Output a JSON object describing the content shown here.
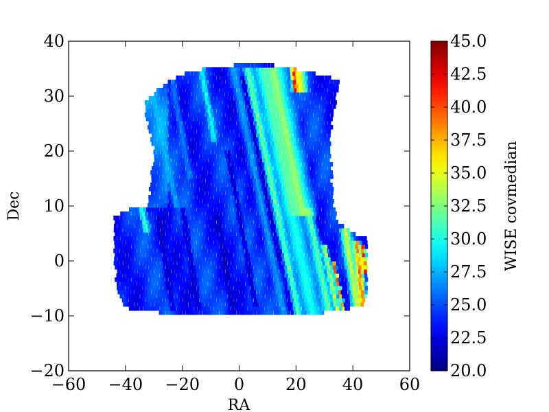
{
  "chart_data": {
    "type": "heatmap",
    "title": "",
    "xlabel": "RA",
    "ylabel": "Dec",
    "xlim": [
      -60,
      60
    ],
    "ylim": [
      -20,
      40
    ],
    "xticks": [
      -60,
      -40,
      -20,
      0,
      20,
      40,
      60
    ],
    "xtick_labels": [
      "−60",
      "−40",
      "−20",
      "0",
      "20",
      "40",
      "60"
    ],
    "yticks": [
      -20,
      -10,
      0,
      10,
      20,
      30,
      40
    ],
    "ytick_labels": [
      "−20",
      "−10",
      "0",
      "10",
      "20",
      "30",
      "40"
    ],
    "colorbar": {
      "label": "WISE covmedian",
      "colormap": "jet",
      "range": [
        20.0,
        45.0
      ],
      "ticks": [
        20.0,
        22.5,
        25.0,
        27.5,
        30.0,
        32.5,
        35.0,
        37.5,
        40.0,
        42.5,
        45.0
      ],
      "tick_labels": [
        "20.0",
        "22.5",
        "25.0",
        "27.5",
        "30.0",
        "32.5",
        "35.0",
        "37.5",
        "40.0",
        "42.5",
        "45.0"
      ]
    },
    "footprint": {
      "description_points": [
        [
          -33,
          29
        ],
        [
          -27,
          32
        ],
        [
          -18,
          34.5
        ],
        [
          -5,
          35.5
        ],
        [
          5,
          36
        ],
        [
          15,
          35.5
        ],
        [
          28,
          34
        ],
        [
          35,
          33
        ],
        [
          32,
          23
        ],
        [
          33,
          10
        ],
        [
          35,
          7
        ],
        [
          40,
          5
        ],
        [
          45,
          4
        ],
        [
          45,
          -4
        ],
        [
          44,
          -8
        ],
        [
          35,
          -9
        ],
        [
          20,
          -10
        ],
        [
          0,
          -10
        ],
        [
          -20,
          -10
        ],
        [
          -40,
          -8.5
        ],
        [
          -43,
          -5
        ],
        [
          -44,
          0
        ],
        [
          -44,
          8
        ],
        [
          -38,
          9.5
        ],
        [
          -32,
          10
        ],
        [
          -30,
          20
        ],
        [
          -33,
          26
        ]
      ],
      "background_value": 24.0,
      "stripes": [
        {
          "x_at_dec0": -30,
          "slope": -0.45,
          "value": 33,
          "width": 1.6,
          "dec_min": 5,
          "dec_max": 30
        },
        {
          "x_at_dec0": -27,
          "slope": -0.5,
          "value": 37,
          "width": 0.9,
          "dec_min": 15,
          "dec_max": 31
        },
        {
          "x_at_dec0": -30,
          "slope": -0.55,
          "value": 43,
          "width": 0.8,
          "dec_min": 24,
          "dec_max": 30
        },
        {
          "x_at_dec0": -18,
          "slope": -0.4,
          "value": 28,
          "width": 1.6,
          "dec_min": 10,
          "dec_max": 34
        },
        {
          "x_at_dec0": -26,
          "slope": -0.3,
          "value": 21,
          "width": 1.4,
          "dec_min": -9,
          "dec_max": 8
        },
        {
          "x_at_dec0": -17,
          "slope": -0.3,
          "value": 21,
          "width": 1.5,
          "dec_min": -9,
          "dec_max": 10
        },
        {
          "x_at_dec0": -5,
          "slope": -0.3,
          "value": 21,
          "width": 1.4,
          "dec_min": -9,
          "dec_max": 8
        },
        {
          "x_at_dec0": -12,
          "slope": -0.35,
          "value": 27,
          "width": 1.8,
          "dec_min": 15,
          "dec_max": 35
        },
        {
          "x_at_dec0": -1,
          "slope": -0.35,
          "value": 31,
          "width": 1.5,
          "dec_min": 22,
          "dec_max": 35
        },
        {
          "x_at_dec0": 3,
          "slope": -0.35,
          "value": 20.5,
          "width": 1.3,
          "dec_min": -8,
          "dec_max": 20
        },
        {
          "x_at_dec0": 14,
          "slope": -0.38,
          "value": 20.5,
          "width": 1.4,
          "dec_min": 0,
          "dec_max": 34
        },
        {
          "x_at_dec0": 12,
          "slope": -0.4,
          "value": 28,
          "width": 2.5,
          "dec_min": -10,
          "dec_max": 35
        },
        {
          "x_at_dec0": 17,
          "slope": -0.4,
          "value": 34,
          "width": 2.0,
          "dec_min": -10,
          "dec_max": 35
        },
        {
          "x_at_dec0": 22,
          "slope": -0.4,
          "value": 31,
          "width": 5.0,
          "dec_min": -10,
          "dec_max": 35
        },
        {
          "x_at_dec0": 26,
          "slope": -0.4,
          "value": 35,
          "width": 6.0,
          "dec_min": 8,
          "dec_max": 35
        },
        {
          "x_at_dec0": 28,
          "slope": -0.4,
          "value": 34,
          "width": 2.5,
          "dec_min": -10,
          "dec_max": 10
        },
        {
          "x_at_dec0": 31,
          "slope": -0.4,
          "value": 38,
          "width": 1.5,
          "dec_min": -10,
          "dec_max": 3
        },
        {
          "x_at_dec0": 33,
          "slope": -0.4,
          "value": 44,
          "width": 1.0,
          "dec_min": -10,
          "dec_max": 0
        },
        {
          "x_at_dec0": 39,
          "slope": -0.3,
          "value": 37,
          "width": 2.5,
          "dec_min": -8,
          "dec_max": 6
        },
        {
          "x_at_dec0": 42,
          "slope": -0.2,
          "value": 43,
          "width": 1.8,
          "dec_min": -8,
          "dec_max": 4
        },
        {
          "x_at_dec0": 44,
          "slope": -0.2,
          "value": 45,
          "width": 1.2,
          "dec_min": -2,
          "dec_max": 3
        },
        {
          "x_at_dec0": 28,
          "slope": -0.2,
          "value": 38,
          "width": 3.0,
          "dec_min": 31,
          "dec_max": 36
        },
        {
          "x_at_dec0": 26,
          "slope": -0.2,
          "value": 45,
          "width": 1.5,
          "dec_min": 31,
          "dec_max": 36
        }
      ]
    }
  }
}
